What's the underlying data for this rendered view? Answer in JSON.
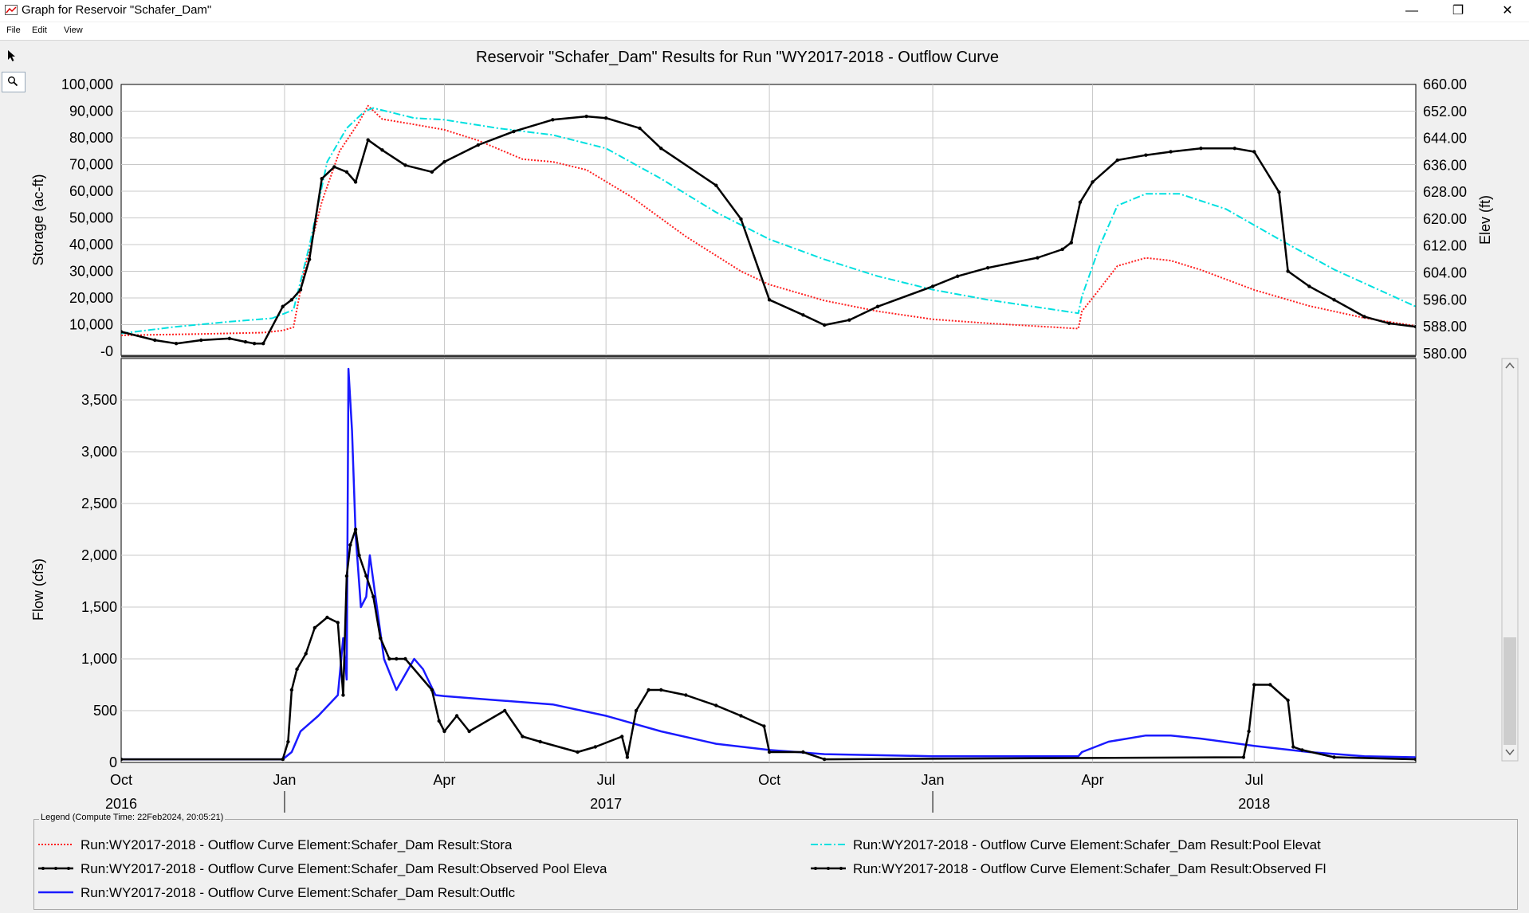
{
  "window": {
    "title": "Graph for Reservoir \"Schafer_Dam\"",
    "buttons": {
      "minimize": "—",
      "restore": "❐",
      "close": "✕"
    }
  },
  "menu": [
    "File",
    "Edit",
    "View"
  ],
  "tools": {
    "select": "pointer-icon",
    "zoom": "magnifier-icon"
  },
  "chart_title": "Reservoir \"Schafer_Dam\" Results for Run \"WY2017-2018 - Outflow Curve",
  "legend": {
    "caption": "Legend (Compute Time: 22Feb2024, 20:05:21)",
    "entries": [
      {
        "label": "Run:WY2017-2018 - Outflow Curve Element:Schafer_Dam Result:Stora",
        "color": "#ff2020",
        "style": "dotted"
      },
      {
        "label": "Run:WY2017-2018 - Outflow Curve Element:Schafer_Dam Result:Pool Elevat",
        "color": "#00e0e0",
        "style": "dash-dot"
      },
      {
        "label": "Run:WY2017-2018 - Outflow Curve Element:Schafer_Dam Result:Observed Pool Eleva",
        "color": "#000000",
        "style": "marker-line"
      },
      {
        "label": "Run:WY2017-2018 - Outflow Curve Element:Schafer_Dam Result:Observed Fl",
        "color": "#000000",
        "style": "marker-line"
      },
      {
        "label": "Run:WY2017-2018 - Outflow Curve Element:Schafer_Dam Result:Outflc",
        "color": "#1a1aff",
        "style": "solid"
      }
    ]
  },
  "chart_data": [
    {
      "type": "line",
      "panel": "top",
      "ylabel": "Storage (ac-ft)",
      "y2label": "Elev (ft)",
      "ylim": [
        -1500,
        100000
      ],
      "yticks": [
        "-0",
        "10,000",
        "20,000",
        "30,000",
        "40,000",
        "50,000",
        "60,000",
        "70,000",
        "80,000",
        "90,000",
        "100,000"
      ],
      "ytick_values": [
        0,
        10000,
        20000,
        30000,
        40000,
        50000,
        60000,
        70000,
        80000,
        90000,
        100000
      ],
      "y2lim": [
        579.5,
        660
      ],
      "y2ticks": [
        "580.00",
        "588.00",
        "596.00",
        "604.00",
        "612.00",
        "620.00",
        "628.00",
        "636.00",
        "644.00",
        "652.00",
        "660.00"
      ],
      "y2tick_values": [
        580,
        588,
        596,
        604,
        612,
        620,
        628,
        636,
        644,
        652,
        660
      ],
      "grid": true,
      "series": [
        {
          "name": "Storage",
          "axis": "left",
          "color": "#ff2020",
          "style": "dotted",
          "x": [
            "2016-10-01",
            "2016-11-15",
            "2016-12-20",
            "2016-12-31",
            "2017-01-06",
            "2017-01-12",
            "2017-01-22",
            "2017-02-01",
            "2017-02-12",
            "2017-02-17",
            "2017-02-25",
            "2017-03-15",
            "2017-04-01",
            "2017-04-20",
            "2017-05-15",
            "2017-06-01",
            "2017-06-20",
            "2017-07-15",
            "2017-08-15",
            "2017-09-15",
            "2017-10-01",
            "2017-11-01",
            "2017-12-01",
            "2018-01-01",
            "2018-02-01",
            "2018-03-24",
            "2018-03-26",
            "2018-04-01",
            "2018-04-15",
            "2018-05-01",
            "2018-05-15",
            "2018-06-01",
            "2018-07-01",
            "2018-08-01",
            "2018-09-01",
            "2018-09-30"
          ],
          "y": [
            6000,
            6500,
            7000,
            7800,
            9000,
            30000,
            56000,
            75000,
            86000,
            92000,
            87000,
            85000,
            83000,
            79000,
            72000,
            71000,
            68000,
            58000,
            43000,
            30000,
            25000,
            19000,
            15000,
            12000,
            10500,
            8500,
            15000,
            20000,
            32000,
            35000,
            34000,
            30500,
            23000,
            17000,
            12500,
            9500
          ]
        },
        {
          "name": "Pool Elevation",
          "axis": "right",
          "color": "#00e0e0",
          "style": "dash-dot",
          "x": [
            "2016-10-01",
            "2016-11-01",
            "2016-12-01",
            "2016-12-25",
            "2017-01-06",
            "2017-01-15",
            "2017-01-25",
            "2017-02-05",
            "2017-02-15",
            "2017-02-20",
            "2017-03-15",
            "2017-04-01",
            "2017-05-01",
            "2017-06-01",
            "2017-07-01",
            "2017-08-01",
            "2017-09-01",
            "2017-10-01",
            "2017-11-01",
            "2017-12-01",
            "2018-01-01",
            "2018-02-01",
            "2018-03-24",
            "2018-03-26",
            "2018-04-05",
            "2018-04-15",
            "2018-05-01",
            "2018-05-20",
            "2018-06-15",
            "2018-07-15",
            "2018-08-15",
            "2018-09-30"
          ],
          "y": [
            586,
            588,
            589.5,
            590.5,
            593,
            612,
            637,
            647,
            652,
            653,
            650,
            649.5,
            647,
            645,
            641,
            632,
            622,
            614,
            608,
            603,
            599,
            596,
            592,
            597,
            612,
            624,
            627.5,
            627.5,
            623,
            614,
            605,
            594
          ]
        },
        {
          "name": "Observed Pool Elevation",
          "axis": "right",
          "color": "#000000",
          "style": "marker-line",
          "x": [
            "2016-10-01",
            "2016-10-20",
            "2016-11-01",
            "2016-11-15",
            "2016-12-01",
            "2016-12-10",
            "2016-12-15",
            "2016-12-20",
            "2016-12-31",
            "2017-01-05",
            "2017-01-10",
            "2017-01-15",
            "2017-01-22",
            "2017-01-29",
            "2017-02-05",
            "2017-02-10",
            "2017-02-17",
            "2017-02-25",
            "2017-03-10",
            "2017-03-25",
            "2017-04-01",
            "2017-04-20",
            "2017-05-10",
            "2017-06-01",
            "2017-06-20",
            "2017-07-01",
            "2017-07-20",
            "2017-08-01",
            "2017-09-01",
            "2017-09-15",
            "2017-10-01",
            "2017-10-20",
            "2017-11-01",
            "2017-11-15",
            "2017-12-01",
            "2018-01-01",
            "2018-01-15",
            "2018-02-01",
            "2018-03-01",
            "2018-03-15",
            "2018-03-20",
            "2018-03-25",
            "2018-04-01",
            "2018-04-15",
            "2018-05-01",
            "2018-05-15",
            "2018-06-01",
            "2018-06-20",
            "2018-07-01",
            "2018-07-15",
            "2018-07-20",
            "2018-08-01",
            "2018-08-15",
            "2018-09-01",
            "2018-09-15",
            "2018-09-30"
          ],
          "y": [
            586.5,
            584,
            583,
            584,
            584.5,
            583.5,
            583,
            583,
            594,
            596,
            599,
            608,
            632,
            635.5,
            634,
            631,
            643.5,
            640.5,
            636,
            634,
            637,
            642,
            646,
            649.5,
            650.5,
            650,
            647,
            641,
            630,
            620,
            596,
            591.5,
            588.5,
            590,
            594,
            600,
            603,
            605.5,
            608.5,
            611,
            613,
            625,
            631,
            637.5,
            639,
            640,
            641,
            641,
            640,
            628,
            604.5,
            600,
            596,
            591,
            589,
            588
          ]
        }
      ]
    },
    {
      "type": "line",
      "panel": "bottom",
      "ylabel": "Flow (cfs)",
      "ylim": [
        0,
        3900
      ],
      "yticks": [
        "0",
        "500",
        "1,000",
        "1,500",
        "2,000",
        "2,500",
        "3,000",
        "3,500"
      ],
      "ytick_values": [
        0,
        500,
        1000,
        1500,
        2000,
        2500,
        3000,
        3500
      ],
      "xticks": [
        "Oct",
        "Jan",
        "Apr",
        "Jul",
        "Oct",
        "Jan",
        "Apr",
        "Jul"
      ],
      "xtick_dates": [
        "2016-10-01",
        "2017-01-01",
        "2017-04-01",
        "2017-07-01",
        "2017-10-01",
        "2018-01-01",
        "2018-04-01",
        "2018-07-01"
      ],
      "xyears": [
        "2016",
        "2017",
        "2018"
      ],
      "xyear_dates": [
        "2016-10-01",
        "2017-07-01",
        "2018-07-01"
      ],
      "xlim": [
        "2016-10-01",
        "2018-09-30"
      ],
      "grid": true,
      "series": [
        {
          "name": "Observed Flow",
          "color": "#000000",
          "style": "marker-line",
          "x": [
            "2016-10-01",
            "2016-12-31",
            "2017-01-03",
            "2017-01-05",
            "2017-01-08",
            "2017-01-13",
            "2017-01-18",
            "2017-01-25",
            "2017-01-31",
            "2017-02-03",
            "2017-02-05",
            "2017-02-07",
            "2017-02-10",
            "2017-02-12",
            "2017-02-16",
            "2017-02-20",
            "2017-02-24",
            "2017-03-01",
            "2017-03-05",
            "2017-03-10",
            "2017-03-25",
            "2017-03-29",
            "2017-04-01",
            "2017-04-08",
            "2017-04-15",
            "2017-05-05",
            "2017-05-15",
            "2017-05-25",
            "2017-06-15",
            "2017-06-25",
            "2017-07-10",
            "2017-07-13",
            "2017-07-18",
            "2017-07-25",
            "2017-08-01",
            "2017-08-15",
            "2017-09-01",
            "2017-09-15",
            "2017-09-28",
            "2017-10-01",
            "2017-10-20",
            "2017-11-01",
            "2018-06-25",
            "2018-06-28",
            "2018-07-01",
            "2018-07-10",
            "2018-07-20",
            "2018-07-23",
            "2018-07-28",
            "2018-08-15",
            "2018-09-30"
          ],
          "y": [
            30,
            30,
            200,
            700,
            900,
            1050,
            1300,
            1400,
            1350,
            650,
            1800,
            2100,
            2250,
            2000,
            1800,
            1600,
            1200,
            1000,
            1000,
            1000,
            700,
            400,
            300,
            450,
            300,
            500,
            250,
            200,
            100,
            150,
            250,
            50,
            500,
            700,
            700,
            650,
            550,
            450,
            350,
            100,
            100,
            30,
            50,
            300,
            750,
            750,
            600,
            150,
            120,
            50,
            30
          ]
        },
        {
          "name": "Outflow",
          "color": "#1a1aff",
          "style": "solid",
          "x": [
            "2016-10-01",
            "2016-12-31",
            "2017-01-05",
            "2017-01-10",
            "2017-01-20",
            "2017-01-31",
            "2017-02-03",
            "2017-02-05",
            "2017-02-06",
            "2017-02-08",
            "2017-02-10",
            "2017-02-13",
            "2017-02-16",
            "2017-02-18",
            "2017-02-22",
            "2017-02-26",
            "2017-03-05",
            "2017-03-10",
            "2017-03-15",
            "2017-03-20",
            "2017-03-27",
            "2017-04-01",
            "2017-05-01",
            "2017-06-01",
            "2017-07-01",
            "2017-08-01",
            "2017-09-01",
            "2017-10-01",
            "2017-11-01",
            "2018-01-01",
            "2018-03-24",
            "2018-03-26",
            "2018-04-10",
            "2018-05-01",
            "2018-05-15",
            "2018-06-01",
            "2018-07-01",
            "2018-08-01",
            "2018-09-01",
            "2018-09-30"
          ],
          "y": [
            30,
            30,
            100,
            300,
            450,
            650,
            1200,
            800,
            3800,
            3200,
            2200,
            1500,
            1600,
            2000,
            1500,
            1000,
            700,
            850,
            1000,
            900,
            650,
            640,
            600,
            560,
            450,
            300,
            180,
            120,
            80,
            60,
            60,
            100,
            200,
            260,
            260,
            230,
            160,
            100,
            60,
            50
          ]
        }
      ]
    }
  ]
}
